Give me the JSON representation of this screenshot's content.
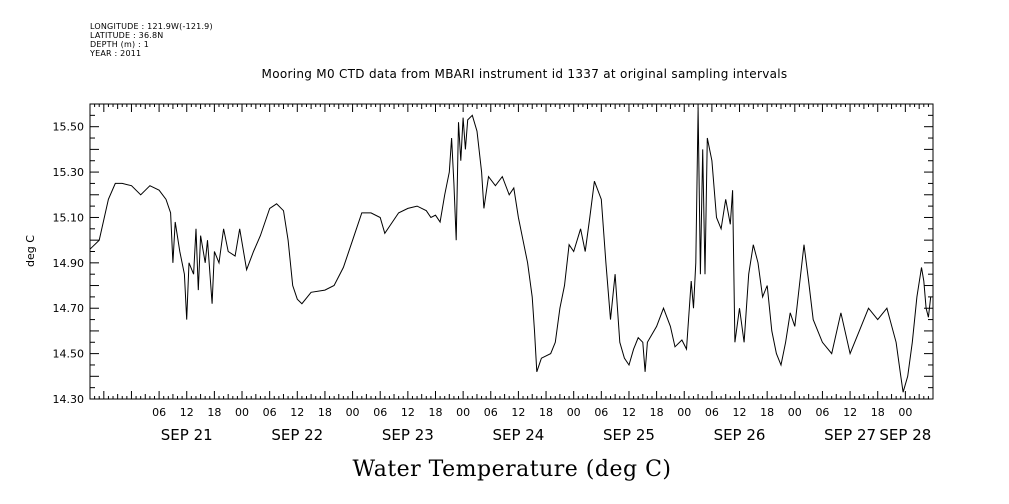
{
  "metadata": {
    "longitude": "LONGITUDE : 121.9W(-121.9)",
    "latitude": "LATITUDE : 36.8N",
    "depth": "DEPTH (m) : 1",
    "year": "YEAR : 2011"
  },
  "chart_data": {
    "type": "line",
    "title": "Mooring M0 CTD data from MBARI instrument id 1337 at original sampling intervals",
    "xlabel": "Water Temperature (deg C)",
    "ylabel": "deg C",
    "ylim": [
      14.3,
      15.6
    ],
    "yticks": [
      "14.30",
      "14.50",
      "14.70",
      "14.90",
      "15.10",
      "15.30",
      "15.50"
    ],
    "ytick_values": [
      14.3,
      14.5,
      14.7,
      14.9,
      15.1,
      15.3,
      15.5
    ],
    "xlim": [
      "2011-09-20 15:00",
      "2011-09-28 06:00"
    ],
    "hour_ticks": [
      {
        "t": "2011-09-21 06:00",
        "label": "06"
      },
      {
        "t": "2011-09-21 12:00",
        "label": "12"
      },
      {
        "t": "2011-09-21 18:00",
        "label": "18"
      },
      {
        "t": "2011-09-22 00:00",
        "label": "00"
      },
      {
        "t": "2011-09-22 06:00",
        "label": "06"
      },
      {
        "t": "2011-09-22 12:00",
        "label": "12"
      },
      {
        "t": "2011-09-22 18:00",
        "label": "18"
      },
      {
        "t": "2011-09-23 00:00",
        "label": "00"
      },
      {
        "t": "2011-09-23 06:00",
        "label": "06"
      },
      {
        "t": "2011-09-23 12:00",
        "label": "12"
      },
      {
        "t": "2011-09-23 18:00",
        "label": "18"
      },
      {
        "t": "2011-09-24 00:00",
        "label": "00"
      },
      {
        "t": "2011-09-24 06:00",
        "label": "06"
      },
      {
        "t": "2011-09-24 12:00",
        "label": "12"
      },
      {
        "t": "2011-09-24 18:00",
        "label": "18"
      },
      {
        "t": "2011-09-25 00:00",
        "label": "00"
      },
      {
        "t": "2011-09-25 06:00",
        "label": "06"
      },
      {
        "t": "2011-09-25 12:00",
        "label": "12"
      },
      {
        "t": "2011-09-25 18:00",
        "label": "18"
      },
      {
        "t": "2011-09-26 00:00",
        "label": "00"
      },
      {
        "t": "2011-09-26 06:00",
        "label": "06"
      },
      {
        "t": "2011-09-26 12:00",
        "label": "12"
      },
      {
        "t": "2011-09-26 18:00",
        "label": "18"
      },
      {
        "t": "2011-09-27 00:00",
        "label": "00"
      },
      {
        "t": "2011-09-27 06:00",
        "label": "06"
      },
      {
        "t": "2011-09-27 12:00",
        "label": "12"
      },
      {
        "t": "2011-09-27 18:00",
        "label": "18"
      },
      {
        "t": "2011-09-28 00:00",
        "label": "00"
      }
    ],
    "day_labels": [
      {
        "t": "2011-09-21 12:00",
        "label": "SEP 21"
      },
      {
        "t": "2011-09-22 12:00",
        "label": "SEP 22"
      },
      {
        "t": "2011-09-23 12:00",
        "label": "SEP 23"
      },
      {
        "t": "2011-09-24 12:00",
        "label": "SEP 24"
      },
      {
        "t": "2011-09-25 12:00",
        "label": "SEP 25"
      },
      {
        "t": "2011-09-26 12:00",
        "label": "SEP 26"
      },
      {
        "t": "2011-09-27 12:00",
        "label": "SEP 27"
      },
      {
        "t": "2011-09-28 00:00",
        "label": "SEP 28"
      }
    ],
    "series": [
      {
        "points": [
          [
            "2011-09-20 15:00",
            14.96
          ],
          [
            "2011-09-20 17:00",
            15.0
          ],
          [
            "2011-09-20 19:00",
            15.18
          ],
          [
            "2011-09-20 20:30",
            15.25
          ],
          [
            "2011-09-20 22:00",
            15.25
          ],
          [
            "2011-09-21 00:00",
            15.24
          ],
          [
            "2011-09-21 02:00",
            15.2
          ],
          [
            "2011-09-21 04:00",
            15.24
          ],
          [
            "2011-09-21 06:00",
            15.22
          ],
          [
            "2011-09-21 07:30",
            15.18
          ],
          [
            "2011-09-21 08:30",
            15.12
          ],
          [
            "2011-09-21 09:00",
            14.9
          ],
          [
            "2011-09-21 09:30",
            15.08
          ],
          [
            "2011-09-21 10:30",
            14.95
          ],
          [
            "2011-09-21 11:30",
            14.85
          ],
          [
            "2011-09-21 12:00",
            14.65
          ],
          [
            "2011-09-21 12:30",
            14.9
          ],
          [
            "2011-09-21 13:30",
            14.85
          ],
          [
            "2011-09-21 14:00",
            15.05
          ],
          [
            "2011-09-21 14:30",
            14.78
          ],
          [
            "2011-09-21 15:00",
            15.02
          ],
          [
            "2011-09-21 16:00",
            14.9
          ],
          [
            "2011-09-21 16:30",
            15.0
          ],
          [
            "2011-09-21 17:30",
            14.72
          ],
          [
            "2011-09-21 18:00",
            14.95
          ],
          [
            "2011-09-21 19:00",
            14.9
          ],
          [
            "2011-09-21 20:00",
            15.05
          ],
          [
            "2011-09-21 21:00",
            14.95
          ],
          [
            "2011-09-21 22:30",
            14.93
          ],
          [
            "2011-09-21 23:30",
            15.05
          ],
          [
            "2011-09-22 01:00",
            14.87
          ],
          [
            "2011-09-22 02:30",
            14.95
          ],
          [
            "2011-09-22 04:00",
            15.02
          ],
          [
            "2011-09-22 06:00",
            15.14
          ],
          [
            "2011-09-22 07:30",
            15.16
          ],
          [
            "2011-09-22 09:00",
            15.13
          ],
          [
            "2011-09-22 10:00",
            15.0
          ],
          [
            "2011-09-22 11:00",
            14.8
          ],
          [
            "2011-09-22 12:00",
            14.74
          ],
          [
            "2011-09-22 13:00",
            14.72
          ],
          [
            "2011-09-22 15:00",
            14.77
          ],
          [
            "2011-09-22 18:00",
            14.78
          ],
          [
            "2011-09-22 20:00",
            14.8
          ],
          [
            "2011-09-22 22:00",
            14.88
          ],
          [
            "2011-09-23 00:00",
            15.0
          ],
          [
            "2011-09-23 02:00",
            15.12
          ],
          [
            "2011-09-23 04:00",
            15.12
          ],
          [
            "2011-09-23 06:00",
            15.1
          ],
          [
            "2011-09-23 07:00",
            15.03
          ],
          [
            "2011-09-23 08:00",
            15.06
          ],
          [
            "2011-09-23 10:00",
            15.12
          ],
          [
            "2011-09-23 12:00",
            15.14
          ],
          [
            "2011-09-23 14:00",
            15.15
          ],
          [
            "2011-09-23 16:00",
            15.13
          ],
          [
            "2011-09-23 17:00",
            15.1
          ],
          [
            "2011-09-23 18:00",
            15.11
          ],
          [
            "2011-09-23 19:00",
            15.08
          ],
          [
            "2011-09-23 20:00",
            15.2
          ],
          [
            "2011-09-23 21:00",
            15.3
          ],
          [
            "2011-09-23 21:30",
            15.45
          ],
          [
            "2011-09-23 22:00",
            15.25
          ],
          [
            "2011-09-23 22:30",
            15.0
          ],
          [
            "2011-09-23 23:00",
            15.52
          ],
          [
            "2011-09-23 23:30",
            15.35
          ],
          [
            "2011-09-24 00:00",
            15.54
          ],
          [
            "2011-09-24 00:30",
            15.4
          ],
          [
            "2011-09-24 01:00",
            15.53
          ],
          [
            "2011-09-24 02:00",
            15.55
          ],
          [
            "2011-09-24 03:00",
            15.48
          ],
          [
            "2011-09-24 04:00",
            15.3
          ],
          [
            "2011-09-24 04:30",
            15.14
          ],
          [
            "2011-09-24 05:30",
            15.28
          ],
          [
            "2011-09-24 07:00",
            15.24
          ],
          [
            "2011-09-24 08:30",
            15.28
          ],
          [
            "2011-09-24 10:00",
            15.2
          ],
          [
            "2011-09-24 11:00",
            15.23
          ],
          [
            "2011-09-24 12:00",
            15.1
          ],
          [
            "2011-09-24 13:00",
            15.0
          ],
          [
            "2011-09-24 14:00",
            14.9
          ],
          [
            "2011-09-24 15:00",
            14.75
          ],
          [
            "2011-09-24 15:30",
            14.6
          ],
          [
            "2011-09-24 16:00",
            14.42
          ],
          [
            "2011-09-24 17:00",
            14.48
          ],
          [
            "2011-09-24 19:00",
            14.5
          ],
          [
            "2011-09-24 20:00",
            14.55
          ],
          [
            "2011-09-24 21:00",
            14.7
          ],
          [
            "2011-09-24 22:00",
            14.8
          ],
          [
            "2011-09-24 23:00",
            14.98
          ],
          [
            "2011-09-25 00:00",
            14.95
          ],
          [
            "2011-09-25 01:30",
            15.05
          ],
          [
            "2011-09-25 02:30",
            14.95
          ],
          [
            "2011-09-25 03:30",
            15.1
          ],
          [
            "2011-09-25 04:30",
            15.26
          ],
          [
            "2011-09-25 06:00",
            15.18
          ],
          [
            "2011-09-25 07:00",
            14.9
          ],
          [
            "2011-09-25 08:00",
            14.65
          ],
          [
            "2011-09-25 09:00",
            14.85
          ],
          [
            "2011-09-25 10:00",
            14.55
          ],
          [
            "2011-09-25 11:00",
            14.48
          ],
          [
            "2011-09-25 12:00",
            14.45
          ],
          [
            "2011-09-25 13:00",
            14.52
          ],
          [
            "2011-09-25 14:00",
            14.57
          ],
          [
            "2011-09-25 15:00",
            14.55
          ],
          [
            "2011-09-25 15:30",
            14.42
          ],
          [
            "2011-09-25 16:00",
            14.55
          ],
          [
            "2011-09-25 18:00",
            14.62
          ],
          [
            "2011-09-25 19:30",
            14.7
          ],
          [
            "2011-09-25 21:00",
            14.62
          ],
          [
            "2011-09-25 22:00",
            14.53
          ],
          [
            "2011-09-25 23:30",
            14.56
          ],
          [
            "2011-09-26 00:30",
            14.52
          ],
          [
            "2011-09-26 01:30",
            14.82
          ],
          [
            "2011-09-26 02:00",
            14.7
          ],
          [
            "2011-09-26 02:30",
            14.9
          ],
          [
            "2011-09-26 03:00",
            15.58
          ],
          [
            "2011-09-26 03:30",
            14.85
          ],
          [
            "2011-09-26 04:00",
            15.4
          ],
          [
            "2011-09-26 04:30",
            14.85
          ],
          [
            "2011-09-26 05:00",
            15.45
          ],
          [
            "2011-09-26 06:00",
            15.35
          ],
          [
            "2011-09-26 07:00",
            15.1
          ],
          [
            "2011-09-26 08:00",
            15.05
          ],
          [
            "2011-09-26 09:00",
            15.18
          ],
          [
            "2011-09-26 10:00",
            15.07
          ],
          [
            "2011-09-26 10:30",
            15.22
          ],
          [
            "2011-09-26 11:00",
            14.55
          ],
          [
            "2011-09-26 12:00",
            14.7
          ],
          [
            "2011-09-26 13:00",
            14.55
          ],
          [
            "2011-09-26 14:00",
            14.85
          ],
          [
            "2011-09-26 15:00",
            14.98
          ],
          [
            "2011-09-26 16:00",
            14.9
          ],
          [
            "2011-09-26 17:00",
            14.75
          ],
          [
            "2011-09-26 18:00",
            14.8
          ],
          [
            "2011-09-26 19:00",
            14.6
          ],
          [
            "2011-09-26 20:00",
            14.5
          ],
          [
            "2011-09-26 21:00",
            14.45
          ],
          [
            "2011-09-26 22:00",
            14.55
          ],
          [
            "2011-09-26 23:00",
            14.68
          ],
          [
            "2011-09-27 00:00",
            14.62
          ],
          [
            "2011-09-27 01:00",
            14.8
          ],
          [
            "2011-09-27 02:00",
            14.98
          ],
          [
            "2011-09-27 03:00",
            14.82
          ],
          [
            "2011-09-27 04:00",
            14.65
          ],
          [
            "2011-09-27 06:00",
            14.55
          ],
          [
            "2011-09-27 08:00",
            14.5
          ],
          [
            "2011-09-27 10:00",
            14.68
          ],
          [
            "2011-09-27 12:00",
            14.5
          ],
          [
            "2011-09-27 14:00",
            14.6
          ],
          [
            "2011-09-27 16:00",
            14.7
          ],
          [
            "2011-09-27 18:00",
            14.65
          ],
          [
            "2011-09-27 20:00",
            14.7
          ],
          [
            "2011-09-27 22:00",
            14.55
          ],
          [
            "2011-09-27 23:00",
            14.4
          ],
          [
            "2011-09-27 23:30",
            14.33
          ],
          [
            "2011-09-28 00:30",
            14.4
          ],
          [
            "2011-09-28 01:30",
            14.55
          ],
          [
            "2011-09-28 02:30",
            14.75
          ],
          [
            "2011-09-28 03:30",
            14.88
          ],
          [
            "2011-09-28 04:00",
            14.82
          ],
          [
            "2011-09-28 04:30",
            14.7
          ],
          [
            "2011-09-28 05:00",
            14.66
          ],
          [
            "2011-09-28 05:30",
            14.75
          ]
        ]
      }
    ]
  }
}
